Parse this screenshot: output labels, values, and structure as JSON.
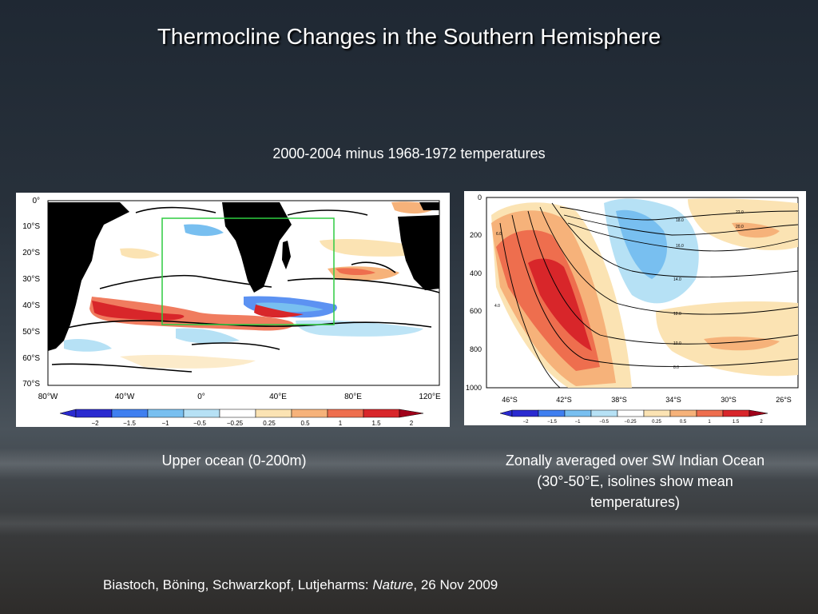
{
  "slide": {
    "title": "Thermocline Changes in the Southern Hemisphere",
    "subtitle": "2000-2004 minus 1968-1972 temperatures",
    "caption_left": "Upper ocean (0-200m)",
    "caption_right_line1": "Zonally averaged over SW Indian Ocean",
    "caption_right_line2": "(30°-50°E, isolines show mean",
    "caption_right_line3": "temperatures)",
    "citation_authors": "Biastoch, Böning, Schwarzkopf, Lutjeharms: ",
    "citation_journal": "Nature",
    "citation_date": ", 26 Nov 2009"
  },
  "map": {
    "lat_labels": [
      "0°",
      "10°S",
      "20°S",
      "30°S",
      "40°S",
      "50°S",
      "60°S",
      "70°S"
    ],
    "lon_labels": [
      "80°W",
      "40°W",
      "0°",
      "40°E",
      "80°E",
      "120°E"
    ],
    "colorbar_ticks": [
      "−2",
      "−1.5",
      "−1",
      "−0.5",
      "−0.25",
      "0.25",
      "0.5",
      "1",
      "1.5",
      "2"
    ]
  },
  "section": {
    "depth_labels": [
      "0",
      "200",
      "400",
      "600",
      "800",
      "1000"
    ],
    "lat_labels": [
      "46°S",
      "42°S",
      "38°S",
      "34°S",
      "30°S",
      "26°S"
    ],
    "colorbar_ticks": [
      "−2",
      "−1.5",
      "−1",
      "−0.5",
      "−0.25",
      "0.25",
      "0.5",
      "1",
      "1.5",
      "2"
    ],
    "isoline_labels": [
      "22.0",
      "20.0",
      "18.0",
      "16.0",
      "14.0",
      "12.0",
      "10.0",
      "8.0",
      "6.0",
      "4.0"
    ]
  },
  "colors": {
    "scale": [
      "#2a2ad0",
      "#3f7ff0",
      "#78bff0",
      "#b6e1f5",
      "#ffffff",
      "#fbe3b3",
      "#f6b27a",
      "#ee6e4e",
      "#d8262a",
      "#a0001a"
    ],
    "land": "#000000",
    "box": "#2ecc40"
  }
}
